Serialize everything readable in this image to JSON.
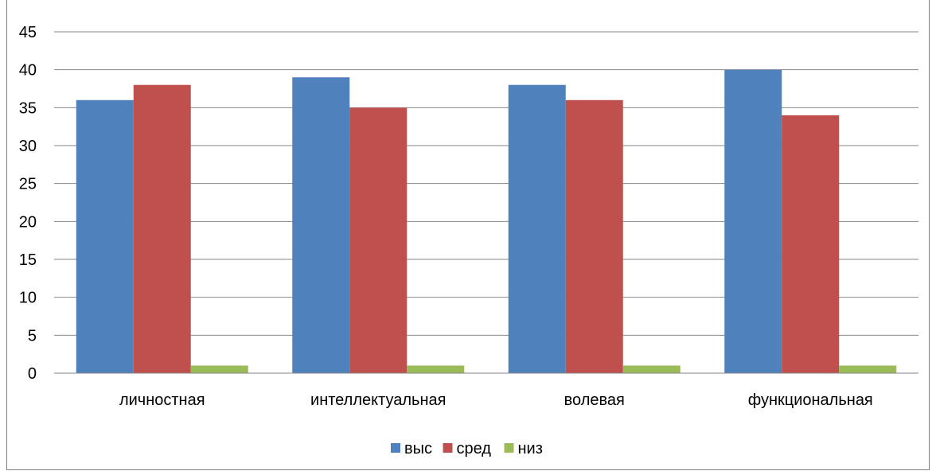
{
  "chart_data": {
    "type": "bar",
    "title": "",
    "xlabel": "",
    "ylabel": "",
    "categories": [
      "личностная",
      "интеллектуальная",
      "волевая",
      "функциональная"
    ],
    "series": [
      {
        "name": "выс",
        "color": "#4f81bd",
        "values": [
          36,
          39,
          38,
          40
        ]
      },
      {
        "name": "сред",
        "color": "#c0504d",
        "values": [
          38,
          35,
          36,
          34
        ]
      },
      {
        "name": "низ",
        "color": "#9bbb59",
        "values": [
          1,
          1,
          1,
          1
        ]
      }
    ],
    "ylim": [
      0,
      45
    ],
    "yticks": [
      0,
      5,
      10,
      15,
      20,
      25,
      30,
      35,
      40,
      45
    ],
    "grid": true,
    "legend_position": "bottom"
  }
}
